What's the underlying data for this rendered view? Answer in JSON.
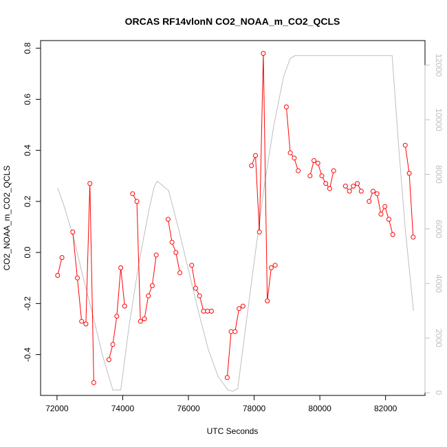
{
  "chart_data": {
    "type": "line",
    "title": "ORCAS RF14vlonN CO2_NOAA_m_CO2_QCLS",
    "xlabel": "UTC Seconds",
    "ylabel": "CO2_NOAA_m_CO2_QCLS",
    "xlim": [
      71500,
      83200
    ],
    "ylim": [
      -0.56,
      0.83
    ],
    "y2lim": [
      -100,
      12900
    ],
    "x_ticks": [
      72000,
      74000,
      76000,
      78000,
      80000,
      82000
    ],
    "y_ticks": [
      -0.4,
      -0.2,
      0.0,
      0.2,
      0.4,
      0.6,
      0.8
    ],
    "y_tick_labels": [
      "-0.4",
      "-0.2",
      "0.0",
      "0.2",
      "0.4",
      "0.6",
      "0.8"
    ],
    "y2_ticks": [
      0,
      2000,
      4000,
      6000,
      8000,
      10000,
      12000
    ],
    "grid": false,
    "series": [
      {
        "role": "difference",
        "color": "#ff0000",
        "marker": "open-circle",
        "segments": [
          {
            "x": [
              72020,
              72150
            ],
            "y": [
              -0.09,
              -0.02
            ]
          },
          {
            "x": [
              72480,
              72620,
              72750,
              72880,
              73000,
              73120
            ],
            "y": [
              0.08,
              -0.1,
              -0.27,
              -0.28,
              0.27,
              -0.51
            ]
          },
          {
            "x": [
              73580,
              73700,
              73820,
              73940,
              74060
            ],
            "y": [
              -0.42,
              -0.36,
              -0.25,
              -0.06,
              -0.21
            ]
          },
          {
            "x": [
              74300,
              74430,
              74540,
              74660,
              74780,
              74900,
              75020
            ],
            "y": [
              0.23,
              0.2,
              -0.27,
              -0.26,
              -0.17,
              -0.13,
              -0.01
            ]
          },
          {
            "x": [
              75380,
              75500,
              75620,
              75740
            ],
            "y": [
              0.13,
              0.04,
              0.0,
              -0.08
            ]
          },
          {
            "x": [
              76100,
              76220,
              76340,
              76460,
              76580,
              76700
            ],
            "y": [
              -0.05,
              -0.14,
              -0.17,
              -0.23,
              -0.23,
              -0.23
            ]
          },
          {
            "x": [
              77180,
              77300,
              77420,
              77540,
              77660
            ],
            "y": [
              -0.49,
              -0.31,
              -0.31,
              -0.22,
              -0.21
            ]
          },
          {
            "x": [
              77920,
              78040,
              78160,
              78280,
              78400,
              78520,
              78640
            ],
            "y": [
              0.34,
              0.38,
              0.08,
              0.78,
              -0.19,
              -0.06,
              -0.05
            ]
          },
          {
            "x": [
              78980,
              79100,
              79220,
              79340
            ],
            "y": [
              0.57,
              0.39,
              0.37,
              0.32
            ]
          },
          {
            "x": [
              79700,
              79820,
              79940,
              80060,
              80180,
              80300,
              80420
            ],
            "y": [
              0.3,
              0.36,
              0.35,
              0.3,
              0.27,
              0.25,
              0.32
            ]
          },
          {
            "x": [
              80780,
              80900,
              81020,
              81140,
              81260
            ],
            "y": [
              0.26,
              0.24,
              0.26,
              0.27,
              0.24
            ]
          },
          {
            "x": [
              81500,
              81620,
              81740,
              81860,
              81980,
              82100,
              82220
            ],
            "y": [
              0.2,
              0.24,
              0.23,
              0.15,
              0.18,
              0.13,
              0.07
            ]
          },
          {
            "x": [
              82600,
              82720,
              82840
            ],
            "y": [
              0.42,
              0.31,
              0.06
            ]
          }
        ]
      },
      {
        "role": "altitude (right axis)",
        "color": "#bebebe",
        "marker": "none",
        "x": [
          72020,
          72200,
          72500,
          72800,
          73100,
          73400,
          73700,
          73820,
          73940,
          74200,
          74500,
          74800,
          74950,
          75050,
          75200,
          75400,
          75700,
          76000,
          76300,
          76600,
          76900,
          77200,
          77350,
          77500,
          77700,
          78000,
          78300,
          78600,
          78900,
          79100,
          79250,
          79500,
          80000,
          81000,
          82000,
          82200,
          82400,
          82600,
          82850
        ],
        "y": [
          7500,
          6900,
          5700,
          4200,
          2800,
          1300,
          100,
          100,
          100,
          2500,
          4800,
          6700,
          7500,
          7750,
          7600,
          7400,
          6000,
          4500,
          3000,
          1600,
          600,
          100,
          50,
          150,
          2000,
          4800,
          7500,
          9800,
          11600,
          12250,
          12350,
          12350,
          12350,
          12350,
          12350,
          12350,
          9000,
          6000,
          3000
        ]
      }
    ]
  }
}
